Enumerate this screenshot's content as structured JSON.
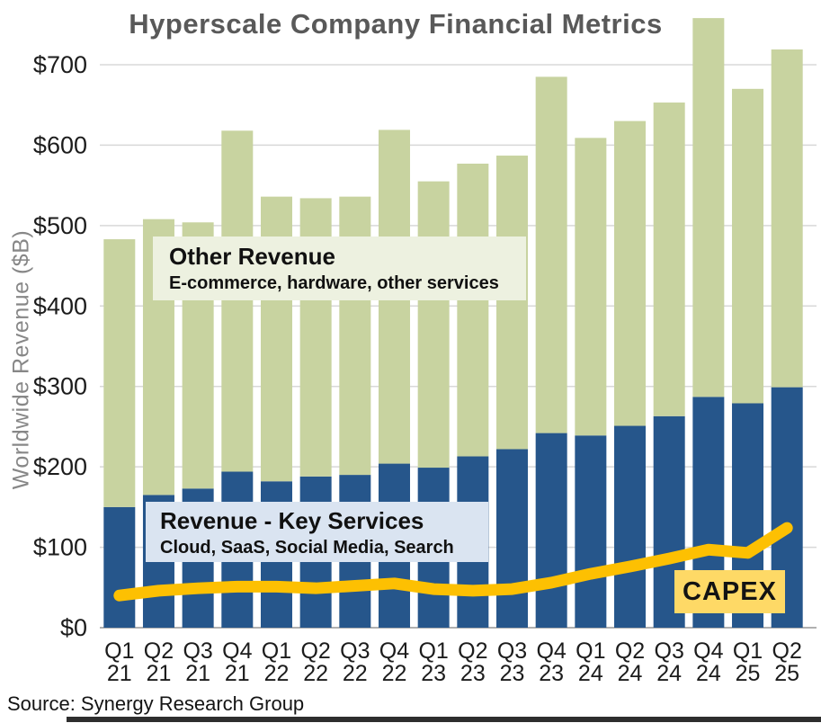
{
  "title": "Hyperscale Company Financial Metrics",
  "source": "Source: Synergy Research Group",
  "y_axis": {
    "title": "Worldwide Revenue ($B)"
  },
  "legends": {
    "other": {
      "title": "Other Revenue",
      "subtitle": "E-commerce, hardware, other services"
    },
    "key": {
      "title": "Revenue - Key Services",
      "subtitle": "Cloud, SaaS, Social Media, Search"
    },
    "capex": "CAPEX"
  },
  "colors": {
    "key_services_bar": "#26568b",
    "other_revenue_bar": "#c8d3a0",
    "capex_line": "#fdc002",
    "capex_box_bg": "#fed966",
    "other_legend_bg": "#edf1e0",
    "key_legend_bg": "#dae4f1",
    "title_text": "#595959",
    "y_axis_title_text": "#878787",
    "axis_text": "#1c1c1c",
    "gridline": "#d8d8d8",
    "baseline": "#b0b0b0"
  },
  "chart_data": {
    "type": "bar",
    "subtype": "stacked-bar-with-line",
    "title": "Hyperscale Company Financial Metrics",
    "xlabel": "",
    "ylabel": "Worldwide Revenue ($B)",
    "ylim": [
      0,
      775
    ],
    "grid": true,
    "legend_position": "inside",
    "categories": [
      "Q1 21",
      "Q2 21",
      "Q3 21",
      "Q4 21",
      "Q1 22",
      "Q2 22",
      "Q3 22",
      "Q4 22",
      "Q1 23",
      "Q2 23",
      "Q3 23",
      "Q4 23",
      "Q1 24",
      "Q2 24",
      "Q3 24",
      "Q4 24",
      "Q1 25",
      "Q2 25"
    ],
    "y_ticks": [
      {
        "v": 0,
        "label": "$0"
      },
      {
        "v": 100,
        "label": "$100"
      },
      {
        "v": 200,
        "label": "$200"
      },
      {
        "v": 300,
        "label": "$300"
      },
      {
        "v": 400,
        "label": "$400"
      },
      {
        "v": 500,
        "label": "$500"
      },
      {
        "v": 600,
        "label": "$600"
      },
      {
        "v": 700,
        "label": "$700"
      }
    ],
    "series": [
      {
        "name": "Revenue - Key Services",
        "type": "bar",
        "stack": 1,
        "values": [
          150,
          165,
          173,
          194,
          182,
          188,
          190,
          204,
          199,
          213,
          222,
          242,
          239,
          251,
          263,
          287,
          279,
          299
        ]
      },
      {
        "name": "Other Revenue",
        "type": "bar",
        "stack": 1,
        "values": [
          333,
          343,
          331,
          424,
          354,
          346,
          346,
          415,
          356,
          364,
          365,
          443,
          370,
          379,
          390,
          471,
          391,
          420
        ]
      },
      {
        "name": "CAPEX",
        "type": "line",
        "values": [
          40,
          46,
          49,
          51,
          51,
          49,
          52,
          55,
          48,
          46,
          48,
          56,
          67,
          76,
          86,
          97,
          93,
          124
        ]
      }
    ],
    "stack_totals": [
      483,
      508,
      504,
      618,
      536,
      534,
      536,
      619,
      555,
      577,
      587,
      685,
      609,
      630,
      653,
      758,
      670,
      719
    ]
  }
}
